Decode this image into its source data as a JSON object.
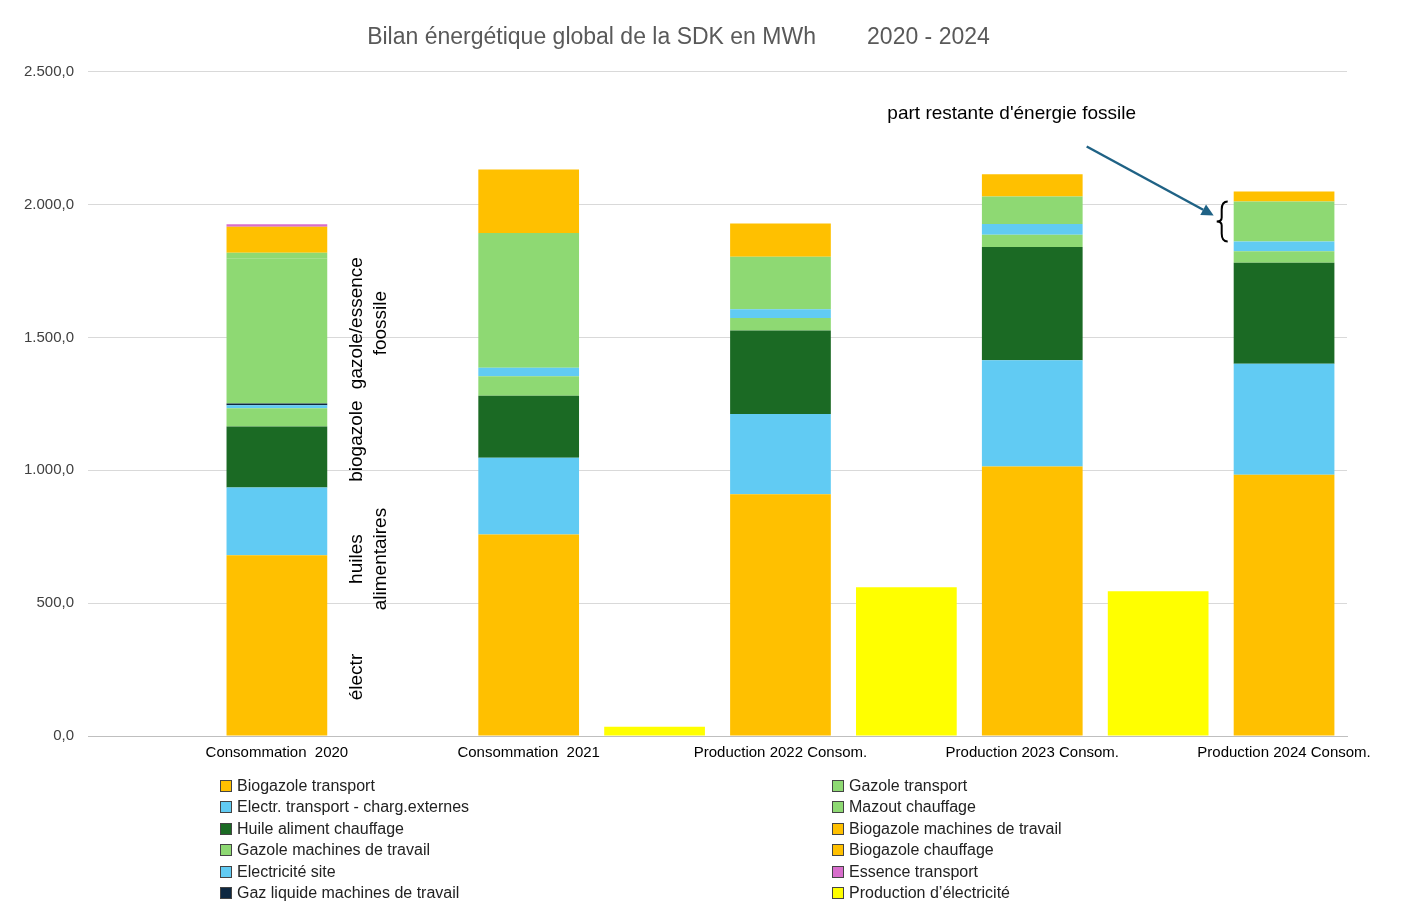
{
  "chart_data": {
    "type": "bar",
    "title": "Bilan énergétique global de la SDK en MWh        2020 - 2024",
    "categories": [
      null,
      "Consommation  2020",
      null,
      "Consommation  2021",
      null,
      "Production 2022 Consom.",
      null,
      "Production 2023 Consom.",
      null,
      "Production 2024 Consom."
    ],
    "stacked": true,
    "series": [
      {
        "name": "Biogazole transport",
        "color": "#ffc000",
        "values": [
          null,
          680,
          null,
          758,
          null,
          910,
          null,
          1014,
          null,
          983
        ]
      },
      {
        "name": "Electr. transport - charg.externes",
        "color": "#61cbf3",
        "values": [
          null,
          255,
          null,
          289,
          null,
          302,
          null,
          400,
          null,
          418
        ]
      },
      {
        "name": "Huile aliment chauffage",
        "color": "#1b6a24",
        "values": [
          null,
          230,
          null,
          233,
          null,
          314,
          null,
          426,
          null,
          380
        ]
      },
      {
        "name": "Gazole machines de travail",
        "color": "#8ed973",
        "values": [
          null,
          68,
          null,
          74,
          null,
          47,
          null,
          46,
          null,
          43
        ]
      },
      {
        "name": "Electricité site",
        "color": "#61cbf3",
        "values": [
          null,
          12,
          null,
          32,
          null,
          33,
          null,
          41,
          null,
          37
        ]
      },
      {
        "name": "Gaz liquide machines de travail",
        "color": "#0e2841",
        "values": [
          null,
          6,
          null,
          null,
          null,
          null,
          null,
          null,
          null,
          null
        ]
      },
      {
        "name": "Gazole transport",
        "color": "#8ed973",
        "values": [
          null,
          545,
          null,
          507,
          null,
          197,
          null,
          103,
          null,
          150
        ]
      },
      {
        "name": "Mazout chauffage",
        "color": "#8ed973",
        "values": [
          null,
          22,
          null,
          null,
          null,
          null,
          null,
          null,
          null,
          null
        ]
      },
      {
        "name": "Biogazole machines de travail",
        "color": "#ffc000",
        "values": [
          null,
          null,
          null,
          null,
          null,
          null,
          null,
          null,
          null,
          null
        ]
      },
      {
        "name": "Biogazole chauffage",
        "color": "#ffc000",
        "values": [
          null,
          98,
          null,
          239,
          null,
          125,
          null,
          84,
          null,
          38
        ]
      },
      {
        "name": "Essence transport",
        "color": "#d86ecc",
        "values": [
          null,
          10,
          null,
          null,
          null,
          null,
          null,
          null,
          null,
          null
        ]
      },
      {
        "name": "Production d’électricité",
        "color": "#ffff00",
        "values": [
          null,
          null,
          null,
          null,
          35,
          null,
          560,
          null,
          545,
          null
        ]
      }
    ],
    "ylim": [
      0,
      2500
    ],
    "yticks": [
      {
        "value": 0,
        "label": "0,0"
      },
      {
        "value": 500,
        "label": "500,0"
      },
      {
        "value": 1000,
        "label": "1.000,0"
      },
      {
        "value": 1500,
        "label": "1.500,0"
      },
      {
        "value": 2000,
        "label": "2.000,0"
      },
      {
        "value": 2500,
        "label": "2.500,0"
      }
    ],
    "grid": "y",
    "legend": "bottom",
    "annotations": [
      "gazole/essence foossile",
      "biogazole",
      "huiles alimentaires",
      "électr",
      "part restante d'énergie fossile"
    ]
  }
}
